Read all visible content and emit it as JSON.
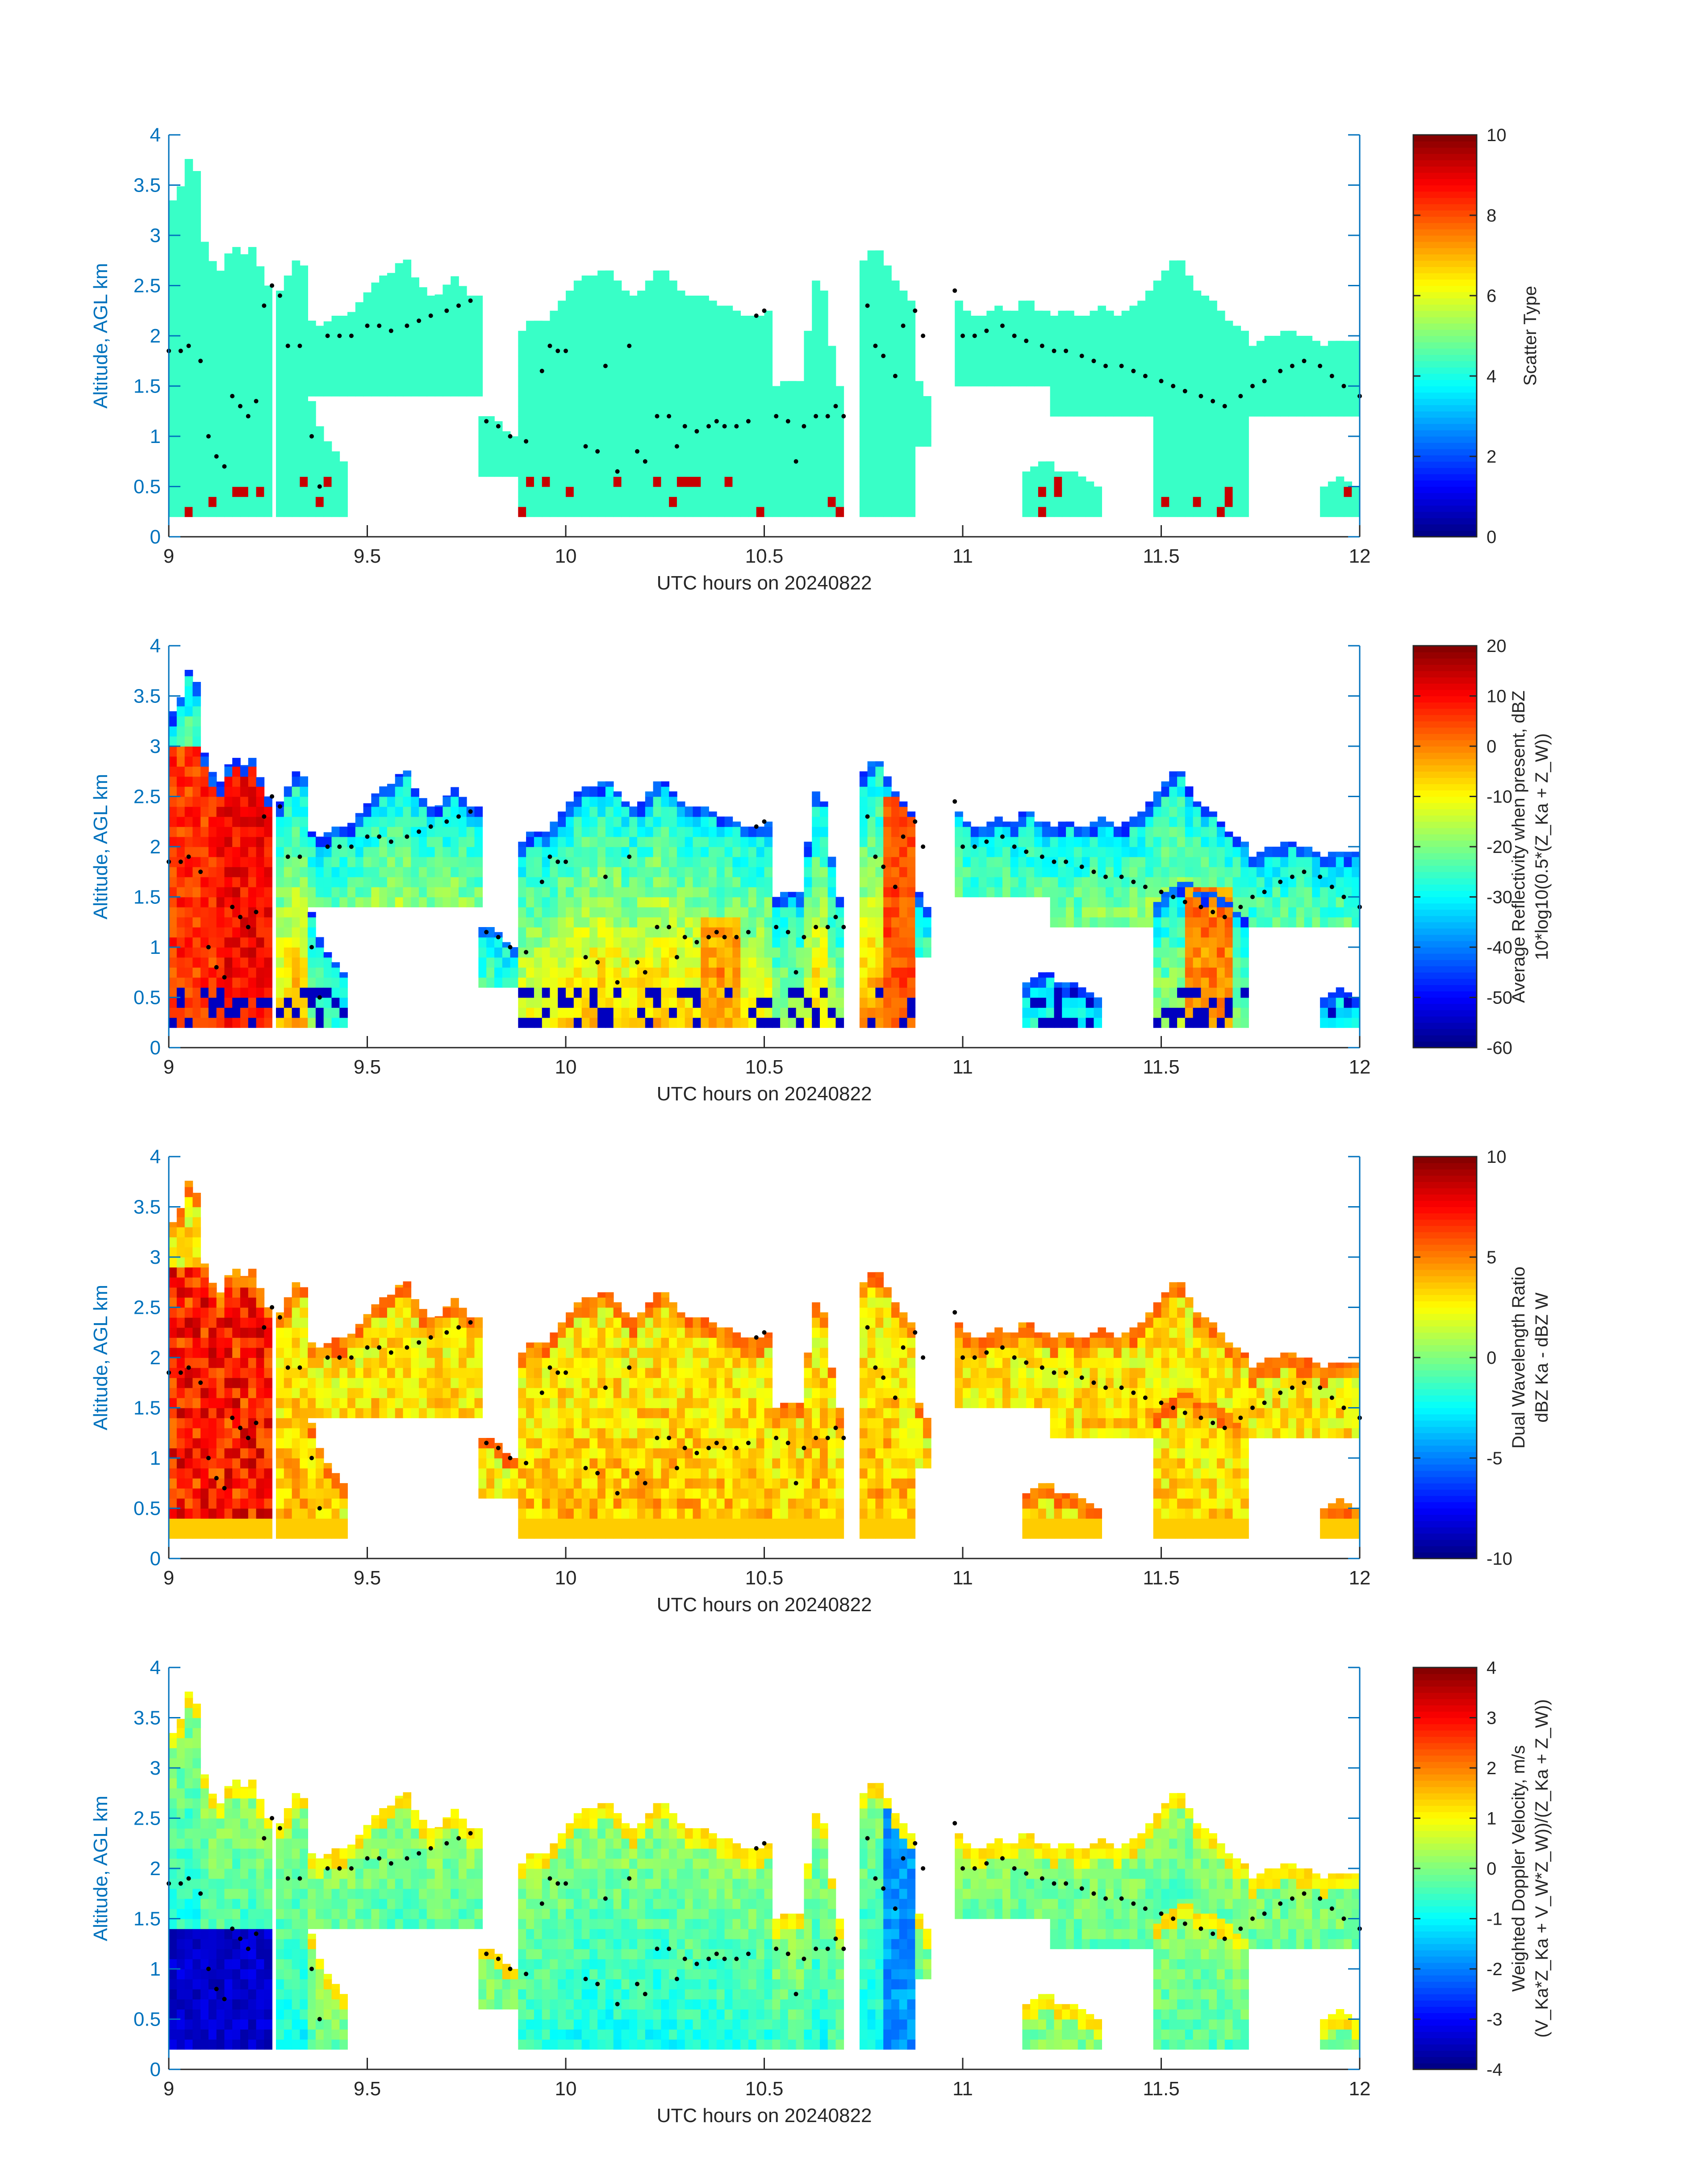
{
  "figure": {
    "background": "#ffffff",
    "axis_color": "#0072bd",
    "text_color": "#262626"
  },
  "chart_data": [
    {
      "type": "heatmap",
      "xlabel": "UTC hours on 20240822",
      "ylabel": "Altitude, AGL km",
      "xlim": [
        9,
        12
      ],
      "ylim": [
        0,
        4
      ],
      "xticks": [
        "9",
        "9.5",
        "10",
        "10.5",
        "11",
        "11.5",
        "12"
      ],
      "yticks": [
        "0",
        "0.5",
        "1",
        "1.5",
        "2",
        "2.5",
        "3",
        "3.5",
        "4"
      ],
      "colorbar": {
        "label_lines": [
          "Scatter Type"
        ],
        "clim": [
          0,
          10
        ],
        "ticks": [
          "0",
          "2",
          "4",
          "6",
          "8",
          "10"
        ],
        "colormap": "jet"
      },
      "field": "scatter",
      "value_range": [
        0,
        10
      ]
    },
    {
      "type": "heatmap",
      "xlabel": "UTC hours on 20240822",
      "ylabel": "Altitude, AGL km",
      "xlim": [
        9,
        12
      ],
      "ylim": [
        0,
        4
      ],
      "xticks": [
        "9",
        "9.5",
        "10",
        "10.5",
        "11",
        "11.5",
        "12"
      ],
      "yticks": [
        "0",
        "0.5",
        "1",
        "1.5",
        "2",
        "2.5",
        "3",
        "3.5",
        "4"
      ],
      "colorbar": {
        "label_lines": [
          "Average Reflectivity when present, dBZ",
          "10*log10(0.5*(Z_Ka + Z_W))"
        ],
        "clim": [
          -60,
          20
        ],
        "ticks": [
          "-60",
          "-50",
          "-40",
          "-30",
          "-20",
          "-10",
          "0",
          "10",
          "20"
        ],
        "colormap": "jet"
      },
      "field": "reflectivity",
      "value_range": [
        -60,
        20
      ]
    },
    {
      "type": "heatmap",
      "xlabel": "UTC hours on 20240822",
      "ylabel": "Altitude, AGL km",
      "xlim": [
        9,
        12
      ],
      "ylim": [
        0,
        4
      ],
      "xticks": [
        "9",
        "9.5",
        "10",
        "10.5",
        "11",
        "11.5",
        "12"
      ],
      "yticks": [
        "0",
        "0.5",
        "1",
        "1.5",
        "2",
        "2.5",
        "3",
        "3.5",
        "4"
      ],
      "colorbar": {
        "label_lines": [
          "Dual Wavelength Ratio",
          "dBZ Ka - dBZ W"
        ],
        "clim": [
          -10,
          10
        ],
        "ticks": [
          "-10",
          "-5",
          "0",
          "5",
          "10"
        ],
        "colormap": "jet"
      },
      "field": "dwr",
      "value_range": [
        -10,
        10
      ]
    },
    {
      "type": "heatmap",
      "xlabel": "UTC hours on 20240822",
      "ylabel": "Altitude, AGL km",
      "xlim": [
        9,
        12
      ],
      "ylim": [
        0,
        4
      ],
      "xticks": [
        "9",
        "9.5",
        "10",
        "10.5",
        "11",
        "11.5",
        "12"
      ],
      "yticks": [
        "0",
        "0.5",
        "1",
        "1.5",
        "2",
        "2.5",
        "3",
        "3.5",
        "4"
      ],
      "colorbar": {
        "label_lines": [
          "Weighted Doppler Velocity, m/s",
          "(V_Ka*Z_Ka + V_W*Z_W))/(Z_Ka + Z_W))"
        ],
        "clim": [
          -4,
          4
        ],
        "ticks": [
          "-4",
          "-3",
          "-2",
          "-1",
          "0",
          "1",
          "2",
          "3",
          "4"
        ],
        "colormap": "jet"
      },
      "field": "velocity",
      "value_range": [
        -4,
        4
      ]
    }
  ],
  "cloud_mask": {
    "x_step": 0.02,
    "y_step": 0.1,
    "segments": [
      {
        "x": [
          9.0,
          9.25
        ],
        "ybot": 0.2,
        "ytop": [
          3.3,
          3.4,
          3.6,
          4.0,
          3.0,
          2.8,
          2.6,
          2.8,
          2.9,
          2.8,
          2.9,
          2.7,
          2.5
        ]
      },
      {
        "x": [
          9.27,
          9.35
        ],
        "ybot": 0.2,
        "ytop": [
          2.4,
          2.5,
          2.7,
          2.8,
          2.6
        ]
      },
      {
        "x": [
          9.35,
          9.78
        ],
        "ybot": 1.4,
        "ytop": [
          2.2,
          2.1,
          2.1,
          2.2,
          2.2,
          2.2,
          2.3,
          2.4,
          2.5,
          2.6,
          2.6,
          2.7,
          2.8,
          2.6,
          2.5,
          2.4,
          2.4,
          2.5,
          2.6,
          2.5,
          2.4,
          2.4
        ]
      },
      {
        "x": [
          9.35,
          9.45
        ],
        "ybot": 0.2,
        "ytop": [
          1.5,
          1.2,
          1.0,
          0.9,
          0.8,
          0.7
        ]
      },
      {
        "x": [
          9.78,
          9.9
        ],
        "ybot": 0.6,
        "ytop": [
          1.2,
          1.2,
          1.2,
          1.1,
          1.0,
          1.0,
          0.9
        ]
      },
      {
        "x": [
          9.88,
          10.52
        ],
        "ybot": 0.2,
        "ytop": [
          2.0,
          2.1,
          2.2,
          2.1,
          2.2,
          2.3,
          2.4,
          2.5,
          2.6,
          2.6,
          2.6,
          2.7,
          2.6,
          2.5,
          2.4,
          2.4,
          2.5,
          2.6,
          2.7,
          2.6,
          2.5,
          2.4,
          2.4,
          2.4,
          2.4,
          2.3,
          2.3,
          2.3,
          2.2,
          2.2,
          2.2,
          2.2,
          2.3
        ]
      },
      {
        "x": [
          10.52,
          10.7
        ],
        "ybot": 0.2,
        "ytop": [
          1.5,
          1.5,
          1.6,
          1.5,
          1.6,
          2.5,
          2.6,
          2.3,
          1.5,
          1.5
        ]
      },
      {
        "x": [
          10.74,
          10.88
        ],
        "ybot": 0.2,
        "ytop": [
          2.7,
          2.8,
          2.9,
          2.8,
          2.6,
          2.5,
          2.4,
          2.3
        ]
      },
      {
        "x": [
          10.88,
          10.92
        ],
        "ybot": 0.9,
        "ytop": [
          1.6,
          1.5,
          1.3
        ]
      },
      {
        "x": [
          10.98,
          11.22
        ],
        "ybot": 1.5,
        "ytop": [
          2.4,
          2.3,
          2.2,
          2.2,
          2.2,
          2.3,
          2.3,
          2.2,
          2.3,
          2.4,
          2.3,
          2.2,
          2.3
        ]
      },
      {
        "x": [
          11.22,
          11.72
        ],
        "ybot": 1.2,
        "ytop": [
          2.2,
          2.2,
          2.3,
          2.2,
          2.2,
          2.2,
          2.3,
          2.3,
          2.2,
          2.2,
          2.3,
          2.3,
          2.4,
          2.5,
          2.6,
          2.7,
          2.8,
          2.7,
          2.5,
          2.4,
          2.4,
          2.3,
          2.2,
          2.1,
          2.1,
          2.0
        ]
      },
      {
        "x": [
          11.48,
          11.72
        ],
        "ybot": 0.2,
        "ytop": [
          1.4,
          1.5,
          1.6,
          1.6,
          1.7,
          1.6,
          1.5,
          1.6,
          1.5,
          1.5,
          1.4,
          1.3,
          1.3
        ]
      },
      {
        "x": [
          11.72,
          12.0
        ],
        "ybot": 1.2,
        "ytop": [
          1.9,
          1.9,
          2.0,
          2.0,
          2.0,
          2.1,
          2.0,
          2.0,
          2.0,
          1.9,
          1.9,
          2.0,
          1.9,
          2.0,
          1.9
        ]
      },
      {
        "x": [
          11.15,
          11.35
        ],
        "ybot": 0.2,
        "ytop": [
          0.6,
          0.7,
          0.7,
          0.8,
          0.7,
          0.6,
          0.7,
          0.6,
          0.6,
          0.5,
          0.5
        ]
      },
      {
        "x": [
          11.9,
          12.0
        ],
        "ybot": 0.2,
        "ytop": [
          0.5,
          0.5,
          0.6,
          0.6,
          0.5,
          0.5
        ]
      }
    ]
  },
  "cloud_top_dots": [
    [
      9.0,
      1.85
    ],
    [
      9.03,
      1.85
    ],
    [
      9.05,
      1.9
    ],
    [
      9.08,
      1.75
    ],
    [
      9.1,
      1.0
    ],
    [
      9.12,
      0.8
    ],
    [
      9.14,
      0.7
    ],
    [
      9.16,
      1.4
    ],
    [
      9.18,
      1.3
    ],
    [
      9.2,
      1.2
    ],
    [
      9.22,
      1.35
    ],
    [
      9.24,
      2.3
    ],
    [
      9.26,
      2.5
    ],
    [
      9.28,
      2.4
    ],
    [
      9.3,
      1.9
    ],
    [
      9.33,
      1.9
    ],
    [
      9.36,
      1.0
    ],
    [
      9.38,
      0.5
    ],
    [
      9.4,
      2.0
    ],
    [
      9.43,
      2.0
    ],
    [
      9.46,
      2.0
    ],
    [
      9.5,
      2.1
    ],
    [
      9.53,
      2.1
    ],
    [
      9.56,
      2.05
    ],
    [
      9.6,
      2.1
    ],
    [
      9.63,
      2.15
    ],
    [
      9.66,
      2.2
    ],
    [
      9.7,
      2.25
    ],
    [
      9.73,
      2.3
    ],
    [
      9.76,
      2.35
    ],
    [
      9.8,
      1.15
    ],
    [
      9.83,
      1.1
    ],
    [
      9.86,
      1.0
    ],
    [
      9.9,
      0.95
    ],
    [
      9.94,
      1.65
    ],
    [
      9.96,
      1.9
    ],
    [
      9.98,
      1.85
    ],
    [
      10.0,
      1.85
    ],
    [
      10.05,
      0.9
    ],
    [
      10.08,
      0.85
    ],
    [
      10.1,
      1.7
    ],
    [
      10.13,
      0.65
    ],
    [
      10.16,
      1.9
    ],
    [
      10.18,
      0.85
    ],
    [
      10.2,
      0.75
    ],
    [
      10.23,
      1.2
    ],
    [
      10.26,
      1.2
    ],
    [
      10.28,
      0.9
    ],
    [
      10.3,
      1.1
    ],
    [
      10.33,
      1.05
    ],
    [
      10.36,
      1.1
    ],
    [
      10.38,
      1.15
    ],
    [
      10.4,
      1.1
    ],
    [
      10.43,
      1.1
    ],
    [
      10.46,
      1.15
    ],
    [
      10.48,
      2.2
    ],
    [
      10.5,
      2.25
    ],
    [
      10.53,
      1.2
    ],
    [
      10.56,
      1.15
    ],
    [
      10.58,
      0.75
    ],
    [
      10.6,
      1.1
    ],
    [
      10.63,
      1.2
    ],
    [
      10.66,
      1.2
    ],
    [
      10.68,
      1.3
    ],
    [
      10.7,
      1.2
    ],
    [
      10.76,
      2.3
    ],
    [
      10.78,
      1.9
    ],
    [
      10.8,
      1.8
    ],
    [
      10.83,
      1.6
    ],
    [
      10.85,
      2.1
    ],
    [
      10.88,
      2.25
    ],
    [
      10.9,
      2.0
    ],
    [
      10.98,
      2.45
    ],
    [
      11.0,
      2.0
    ],
    [
      11.03,
      2.0
    ],
    [
      11.06,
      2.05
    ],
    [
      11.1,
      2.1
    ],
    [
      11.13,
      2.0
    ],
    [
      11.16,
      1.95
    ],
    [
      11.2,
      1.9
    ],
    [
      11.23,
      1.85
    ],
    [
      11.26,
      1.85
    ],
    [
      11.3,
      1.8
    ],
    [
      11.33,
      1.75
    ],
    [
      11.36,
      1.7
    ],
    [
      11.4,
      1.7
    ],
    [
      11.43,
      1.65
    ],
    [
      11.46,
      1.6
    ],
    [
      11.5,
      1.55
    ],
    [
      11.53,
      1.5
    ],
    [
      11.56,
      1.45
    ],
    [
      11.6,
      1.4
    ],
    [
      11.63,
      1.35
    ],
    [
      11.66,
      1.3
    ],
    [
      11.7,
      1.4
    ],
    [
      11.73,
      1.5
    ],
    [
      11.76,
      1.55
    ],
    [
      11.8,
      1.65
    ],
    [
      11.83,
      1.7
    ],
    [
      11.86,
      1.75
    ],
    [
      11.9,
      1.7
    ],
    [
      11.93,
      1.6
    ],
    [
      11.96,
      1.5
    ],
    [
      12.0,
      1.4
    ]
  ]
}
